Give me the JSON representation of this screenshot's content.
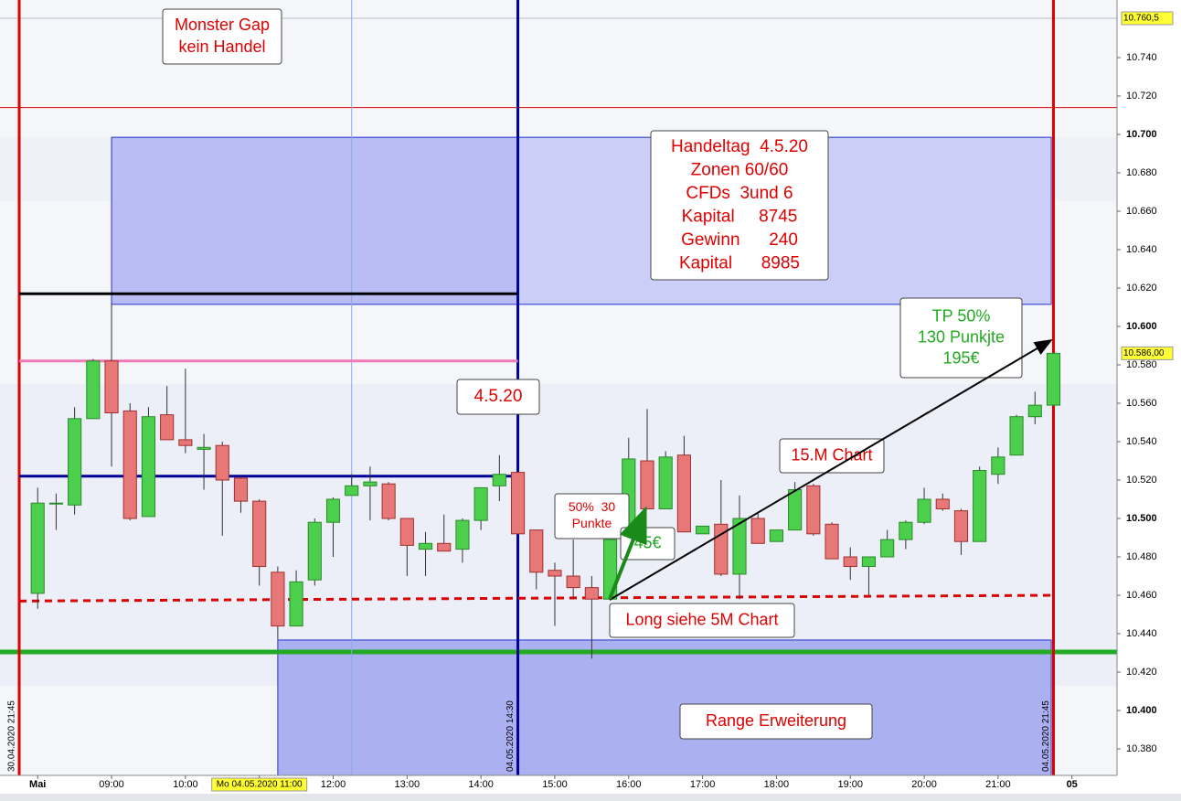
{
  "chart_data": {
    "type": "candlestick",
    "x": [
      8,
      8.25,
      8.5,
      8.75,
      9,
      9.25,
      9.5,
      9.75,
      10,
      10.25,
      10.5,
      10.75,
      11,
      11.25,
      11.5,
      11.75,
      12,
      12.25,
      12.5,
      12.75,
      13,
      13.25,
      13.5,
      13.75,
      14,
      14.25,
      14.5,
      14.75,
      15,
      15.25,
      15.5,
      15.75,
      16,
      16.25,
      16.5,
      16.75,
      17,
      17.25,
      17.5,
      17.75,
      18,
      18.25,
      18.5,
      18.75,
      19,
      19.25,
      19.5,
      19.75,
      20,
      20.25,
      20.5,
      20.75,
      21,
      21.25,
      21.5,
      21.75
    ],
    "open": [
      10461,
      10508,
      10507,
      10552,
      10582,
      10556,
      10501,
      10554,
      10541,
      10536,
      10538,
      10521,
      10509,
      10472,
      10444,
      10468,
      10498,
      10512,
      10517,
      10518,
      10500,
      10484,
      10487,
      10484,
      10499,
      10517,
      10524,
      10494,
      10473,
      10470,
      10464,
      10458,
      10489,
      10530,
      10505,
      10533,
      10492,
      10497,
      10471,
      10500,
      10488,
      10494,
      10517,
      10497,
      10480,
      10475,
      10480,
      10489,
      10498,
      10510,
      10504,
      10488,
      10523,
      10533,
      10553,
      10559
    ],
    "high": [
      10516,
      10513,
      10558,
      10583,
      10612,
      10560,
      10558,
      10569,
      10578,
      10544,
      10540,
      10522,
      10510,
      10475,
      10473,
      10500,
      10511,
      10523,
      10527,
      10519,
      10500,
      10493,
      10502,
      10500,
      10516,
      10533,
      10524,
      10494,
      10477,
      10489,
      10470,
      10496,
      10542,
      10557,
      10535,
      10543,
      10496,
      10520,
      10512,
      10503,
      10494,
      10519,
      10518,
      10498,
      10485,
      10480,
      10494,
      10499,
      10516,
      10513,
      10505,
      10527,
      10537,
      10554,
      10566,
      10586
    ],
    "low": [
      10453,
      10494,
      10502,
      10552,
      10527,
      10499,
      10501,
      10541,
      10534,
      10515,
      10491,
      10503,
      10465,
      10437,
      10444,
      10465,
      10480,
      10512,
      10499,
      10499,
      10470,
      10470,
      10483,
      10477,
      10494,
      10509,
      10492,
      10463,
      10444,
      10458,
      10427,
      10458,
      10489,
      10505,
      10505,
      10493,
      10492,
      10470,
      10458,
      10487,
      10488,
      10494,
      10491,
      10479,
      10468,
      10460,
      10480,
      10484,
      10497,
      10504,
      10481,
      10488,
      10518,
      10533,
      10549,
      10559
    ],
    "close": [
      10508,
      10508,
      10552,
      10582,
      10555,
      10500,
      10553,
      10541,
      10538,
      10537,
      10520,
      10509,
      10475,
      10444,
      10467,
      10498,
      10510,
      10517,
      10519,
      10500,
      10486,
      10487,
      10483,
      10499,
      10516,
      10523,
      10492,
      10472,
      10470,
      10464,
      10458,
      10489,
      10531,
      10505,
      10532,
      10493,
      10496,
      10471,
      10500,
      10487,
      10494,
      10515,
      10492,
      10479,
      10475,
      10480,
      10489,
      10498,
      10510,
      10505,
      10488,
      10525,
      10532,
      10553,
      10559,
      10586
    ],
    "up_color": "#4ccf4c",
    "down_color": "#e87878",
    "xlim": [
      7.49,
      22.61
    ],
    "ylim": [
      10366.2,
      10770
    ],
    "xticks": [
      {
        "value": 8,
        "label": "Mai"
      },
      {
        "value": 9,
        "label": "09:00"
      },
      {
        "value": 10,
        "label": "10:00"
      },
      {
        "value": 11,
        "label": "11:00"
      },
      {
        "value": 12,
        "label": "12:00"
      },
      {
        "value": 13,
        "label": "13:00"
      },
      {
        "value": 14,
        "label": "14:00"
      },
      {
        "value": 15,
        "label": "15:00"
      },
      {
        "value": 16,
        "label": "16:00"
      },
      {
        "value": 17,
        "label": "17:00"
      },
      {
        "value": 18,
        "label": "18:00"
      },
      {
        "value": 19,
        "label": "19:00"
      },
      {
        "value": 20,
        "label": "20:00"
      },
      {
        "value": 21,
        "label": "21:00"
      },
      {
        "value": 22,
        "label": "05"
      }
    ],
    "yticks": [
      {
        "value": 10380,
        "label": "10.380"
      },
      {
        "value": 10400,
        "label": "10.400"
      },
      {
        "value": 10420,
        "label": "10.420"
      },
      {
        "value": 10440,
        "label": "10.440"
      },
      {
        "value": 10460,
        "label": "10.460"
      },
      {
        "value": 10480,
        "label": "10.480"
      },
      {
        "value": 10500,
        "label": "10.500"
      },
      {
        "value": 10520,
        "label": "10.520"
      },
      {
        "value": 10540,
        "label": "10.540"
      },
      {
        "value": 10560,
        "label": "10.560"
      },
      {
        "value": 10580,
        "label": "10.580"
      },
      {
        "value": 10600,
        "label": "10.600"
      },
      {
        "value": 10620,
        "label": "10.620"
      },
      {
        "value": 10640,
        "label": "10.640"
      },
      {
        "value": 10660,
        "label": "10.660"
      },
      {
        "value": 10680,
        "label": "10.680"
      },
      {
        "value": 10700,
        "label": "10.700"
      },
      {
        "value": 10720,
        "label": "10.720"
      },
      {
        "value": 10740,
        "label": "10.740"
      }
    ],
    "price_markers": [
      {
        "value": 10760.5,
        "label": "10.760,5",
        "line": true
      },
      {
        "value": 10586,
        "label": "10.586,00",
        "line": false
      }
    ],
    "x_cursor": {
      "value": 11,
      "label": "Mo 04.05.2020 11:00"
    },
    "zones": [
      {
        "x": [
          9,
          14.5
        ],
        "y": [
          10611.5,
          10698.5
        ],
        "color": "#babdf3"
      },
      {
        "x": [
          14.5,
          21.72
        ],
        "y": [
          10611.5,
          10698.5
        ],
        "color": "#cbcff7"
      },
      {
        "x": [
          11.25,
          21.72
        ],
        "y": [
          10366.2,
          10436.7
        ],
        "color": "#aab0f0"
      }
    ],
    "hlines": [
      {
        "value": 10714,
        "color": "#e00000",
        "width": 1
      },
      {
        "value": 10430.5,
        "color": "#22aa22",
        "width": 5
      }
    ],
    "segments": [
      {
        "x": [
          7.75,
          14.5
        ],
        "y": [
          10617,
          10617
        ],
        "color": "#000000",
        "width": 3,
        "dash": false
      },
      {
        "x": [
          7.75,
          14.5
        ],
        "y": [
          10582,
          10582
        ],
        "color": "#f07ab8",
        "width": 3,
        "dash": false
      },
      {
        "x": [
          7.75,
          14.5
        ],
        "y": [
          10522,
          10522
        ],
        "color": "#000099",
        "width": 3,
        "dash": false
      },
      {
        "x": [
          7.75,
          21.75
        ],
        "y": [
          10457,
          10460
        ],
        "color": "#e00000",
        "width": 3,
        "dash": true
      }
    ],
    "vlines": [
      {
        "x": 7.75,
        "color": "#e00000",
        "width": 3,
        "label": "30.04.2020 21:45"
      },
      {
        "x": 12.25,
        "color": "#8fa8e8",
        "width": 1
      },
      {
        "x": 14.5,
        "color": "#000099",
        "width": 3,
        "label": "04.05.2020 14:30"
      },
      {
        "x": 21.75,
        "color": "#e00000",
        "width": 3,
        "label": "04.05.2020 21:45"
      }
    ],
    "annotations": [
      {
        "lines": [
          "Monster Gap",
          "kein Handel"
        ],
        "color": "#e00000"
      },
      {
        "lines": [
          "Handeltag  4.5.20",
          "Zonen 60/60",
          "CFDs  3und 6",
          "Kapital     8745",
          "Gewinn      240",
          "Kapital      8985"
        ],
        "color": "#e00000"
      },
      {
        "lines": [
          "4.5.20"
        ],
        "color": "#e00000"
      },
      {
        "lines": [
          "TP 50%",
          "130 Punkjte",
          "195€"
        ],
        "color": "#22aa22"
      },
      {
        "lines": [
          "15.M Chart"
        ],
        "color": "#e00000"
      },
      {
        "lines": [
          "50%  30",
          "Punkte"
        ],
        "color": "#e00000"
      },
      {
        "lines": [
          "45€"
        ],
        "color": "#22aa22"
      },
      {
        "lines": [
          "Long siehe 5M Chart"
        ],
        "color": "#e00000"
      },
      {
        "lines": [
          "Range Erweiterung"
        ],
        "color": "#e00000"
      }
    ]
  }
}
